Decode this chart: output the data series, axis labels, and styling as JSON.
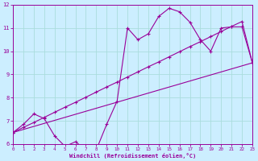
{
  "xlabel": "Windchill (Refroidissement éolien,°C)",
  "background_color": "#cceeff",
  "grid_color": "#aadddd",
  "line_color": "#990099",
  "xmin": 0,
  "xmax": 23,
  "ymin": 6,
  "ymax": 12,
  "xticks": [
    0,
    1,
    2,
    3,
    4,
    5,
    6,
    7,
    8,
    9,
    10,
    11,
    12,
    13,
    14,
    15,
    16,
    17,
    18,
    19,
    20,
    21,
    22,
    23
  ],
  "yticks": [
    6,
    7,
    8,
    9,
    10,
    11,
    12
  ],
  "series1_x": [
    0,
    1,
    2,
    3,
    4,
    5,
    6,
    7,
    8,
    9,
    10,
    11,
    12,
    13,
    14,
    15,
    16,
    17,
    18,
    19,
    20,
    21,
    22,
    23
  ],
  "series1_y": [
    6.5,
    6.85,
    7.3,
    7.1,
    6.35,
    5.9,
    6.1,
    5.75,
    5.75,
    6.85,
    7.85,
    11.0,
    10.5,
    10.75,
    11.5,
    11.85,
    11.7,
    11.25,
    10.5,
    10.0,
    11.0,
    11.05,
    11.05,
    9.5
  ],
  "series2_x": [
    0,
    1,
    2,
    3,
    4,
    5,
    6,
    7,
    8,
    9,
    10,
    11,
    12,
    13,
    14,
    15,
    16,
    17,
    18,
    19,
    20,
    21,
    22,
    23
  ],
  "series2_y": [
    6.5,
    6.72,
    6.93,
    7.15,
    7.37,
    7.59,
    7.8,
    8.02,
    8.24,
    8.46,
    8.67,
    8.89,
    9.11,
    9.33,
    9.54,
    9.76,
    9.98,
    10.2,
    10.41,
    10.63,
    10.85,
    11.07,
    11.28,
    9.5
  ],
  "series3_x": [
    0,
    23
  ],
  "series3_y": [
    6.5,
    9.5
  ]
}
